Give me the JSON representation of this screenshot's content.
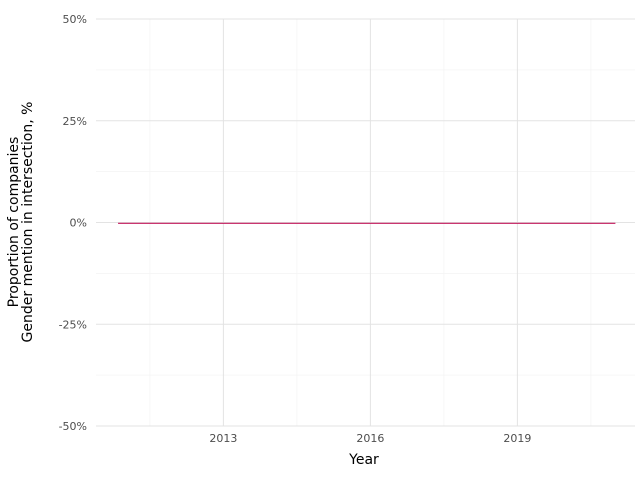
{
  "chart_data": {
    "type": "line",
    "title": "",
    "xlabel": "Year",
    "ylabel_lines": [
      "Proportion of companies",
      "Gender mention in intersection, %"
    ],
    "xlim": [
      2010.4,
      2021.4
    ],
    "ylim": [
      -50,
      50
    ],
    "x_ticks": [
      2013,
      2016,
      2019
    ],
    "x_minor_ticks": [
      2011.5,
      2014.5,
      2017.5,
      2020.5
    ],
    "y_ticks": [
      {
        "value": 50,
        "label": "50%"
      },
      {
        "value": 25,
        "label": "25%"
      },
      {
        "value": 0,
        "label": "0%"
      },
      {
        "value": -25,
        "label": "-25%"
      },
      {
        "value": -50,
        "label": "-50%"
      }
    ],
    "y_minor_ticks": [
      37.5,
      12.5,
      -12.5,
      -37.5
    ],
    "grid": true,
    "series": [
      {
        "color": "#c2185b",
        "x": [
          2010.85,
          2011,
          2012,
          2013,
          2014,
          2015,
          2016,
          2017,
          2018,
          2019,
          2020,
          2021
        ],
        "y": [
          -0.2,
          -0.2,
          -0.2,
          -0.2,
          -0.2,
          -0.2,
          -0.2,
          -0.2,
          -0.2,
          -0.2,
          -0.2,
          -0.2
        ]
      }
    ]
  }
}
